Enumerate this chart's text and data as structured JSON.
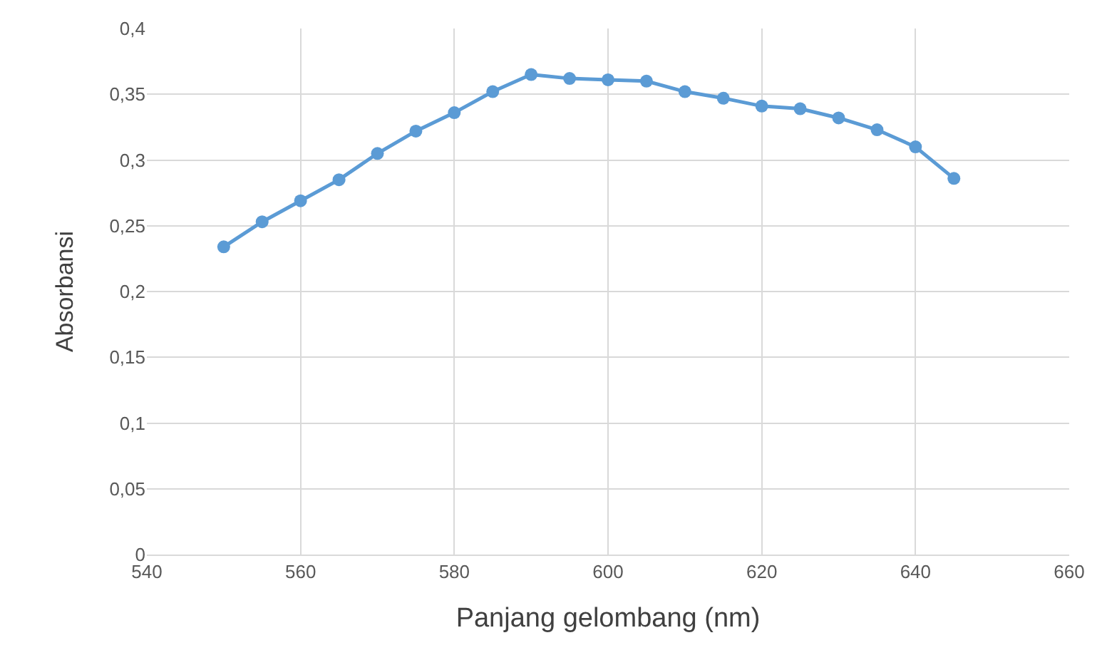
{
  "chart_data": {
    "type": "line",
    "xlabel": "Panjang gelombang (nm)",
    "ylabel": "Absorbansi",
    "x": [
      550,
      555,
      560,
      565,
      570,
      575,
      580,
      585,
      590,
      595,
      600,
      605,
      610,
      615,
      620,
      625,
      630,
      635,
      640,
      645
    ],
    "series": [
      {
        "color": "#5b9bd5",
        "values": [
          0.234,
          0.253,
          0.269,
          0.285,
          0.305,
          0.322,
          0.336,
          0.352,
          0.365,
          0.362,
          0.361,
          0.36,
          0.352,
          0.347,
          0.341,
          0.339,
          0.332,
          0.323,
          0.31,
          0.286
        ]
      }
    ],
    "xlim": [
      540,
      660
    ],
    "xticks": [
      540,
      560,
      580,
      600,
      620,
      640,
      660
    ],
    "ylim": [
      0,
      0.4
    ],
    "yticks": [
      0,
      {
        "value": 0.05,
        "label": "0,05"
      },
      {
        "value": 0.1,
        "label": "0,1"
      },
      {
        "value": 0.15,
        "label": "0,15"
      },
      {
        "value": 0.2,
        "label": "0,2"
      },
      {
        "value": 0.25,
        "label": "0,25"
      },
      {
        "value": 0.3,
        "label": "0,3"
      },
      {
        "value": 0.35,
        "label": "0,35"
      },
      {
        "value": 0.4,
        "label": "0,4"
      }
    ],
    "grid": true,
    "marker": "circle",
    "line_style": "solid"
  }
}
